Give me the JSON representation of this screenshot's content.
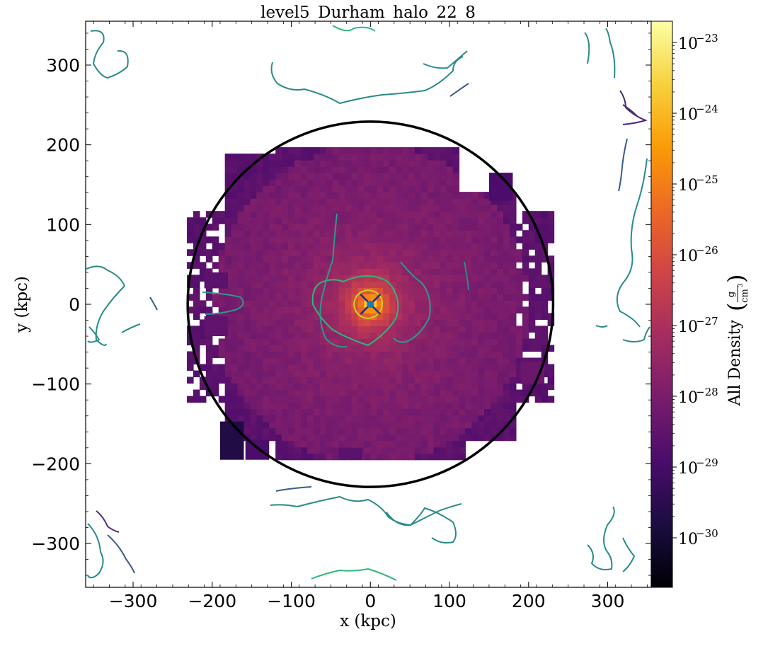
{
  "chart_data": {
    "type": "heatmap",
    "title": "level5_Durham_halo_22_8",
    "xlabel": "x  (kpc)",
    "ylabel": "y  (kpc)",
    "xlim": [
      -360,
      355
    ],
    "ylim": [
      -355,
      355
    ],
    "xticks": [
      -300,
      -200,
      -100,
      0,
      100,
      200,
      300
    ],
    "yticks": [
      -300,
      -200,
      -100,
      0,
      100,
      200,
      300
    ],
    "x_tick_labels": [
      "−300",
      "−200",
      "−100",
      "0",
      "100",
      "200",
      "300"
    ],
    "y_tick_labels": [
      "−300",
      "−200",
      "−100",
      "0",
      "100",
      "200",
      "300"
    ],
    "colorbar": {
      "label": "All Density",
      "unit_numerator": "g",
      "unit_denominator": "cm",
      "unit_exponent": "3",
      "scale": "log",
      "range": [
        -30.7,
        -22.7
      ],
      "ticks": [
        {
          "exp": -23,
          "base": "10",
          "power": "−23"
        },
        {
          "exp": -24,
          "base": "10",
          "power": "−24"
        },
        {
          "exp": -25,
          "base": "10",
          "power": "−25"
        },
        {
          "exp": -26,
          "base": "10",
          "power": "−26"
        },
        {
          "exp": -27,
          "base": "10",
          "power": "−27"
        },
        {
          "exp": -28,
          "base": "10",
          "power": "−28"
        },
        {
          "exp": -29,
          "base": "10",
          "power": "−29"
        },
        {
          "exp": -30,
          "base": "10",
          "power": "−30"
        }
      ],
      "colormap": [
        "#000004",
        "#1b0c41",
        "#4a0c6b",
        "#781c6d",
        "#a52c60",
        "#cf4446",
        "#ed6925",
        "#fb9b06",
        "#f7d13d",
        "#fcffa4"
      ]
    },
    "field_extent": {
      "x_range": [
        -240,
        240
      ],
      "y_range": [
        -195,
        195
      ]
    },
    "core_log_density": -23.8,
    "background_log_density": -27.9,
    "virial_circle": {
      "center": [
        0,
        0
      ],
      "radius": 231
    },
    "center_marker": {
      "x": 0,
      "y": 0,
      "color": "#1f77b4"
    },
    "colors": {
      "circle": "#000000",
      "marker_cross": "#1c2ca8",
      "contour_a": "#2a8a8a",
      "contour_b": "#3b5b8c",
      "contour_c": "#2fb67a",
      "contour_d": "#4a2a7a"
    }
  }
}
